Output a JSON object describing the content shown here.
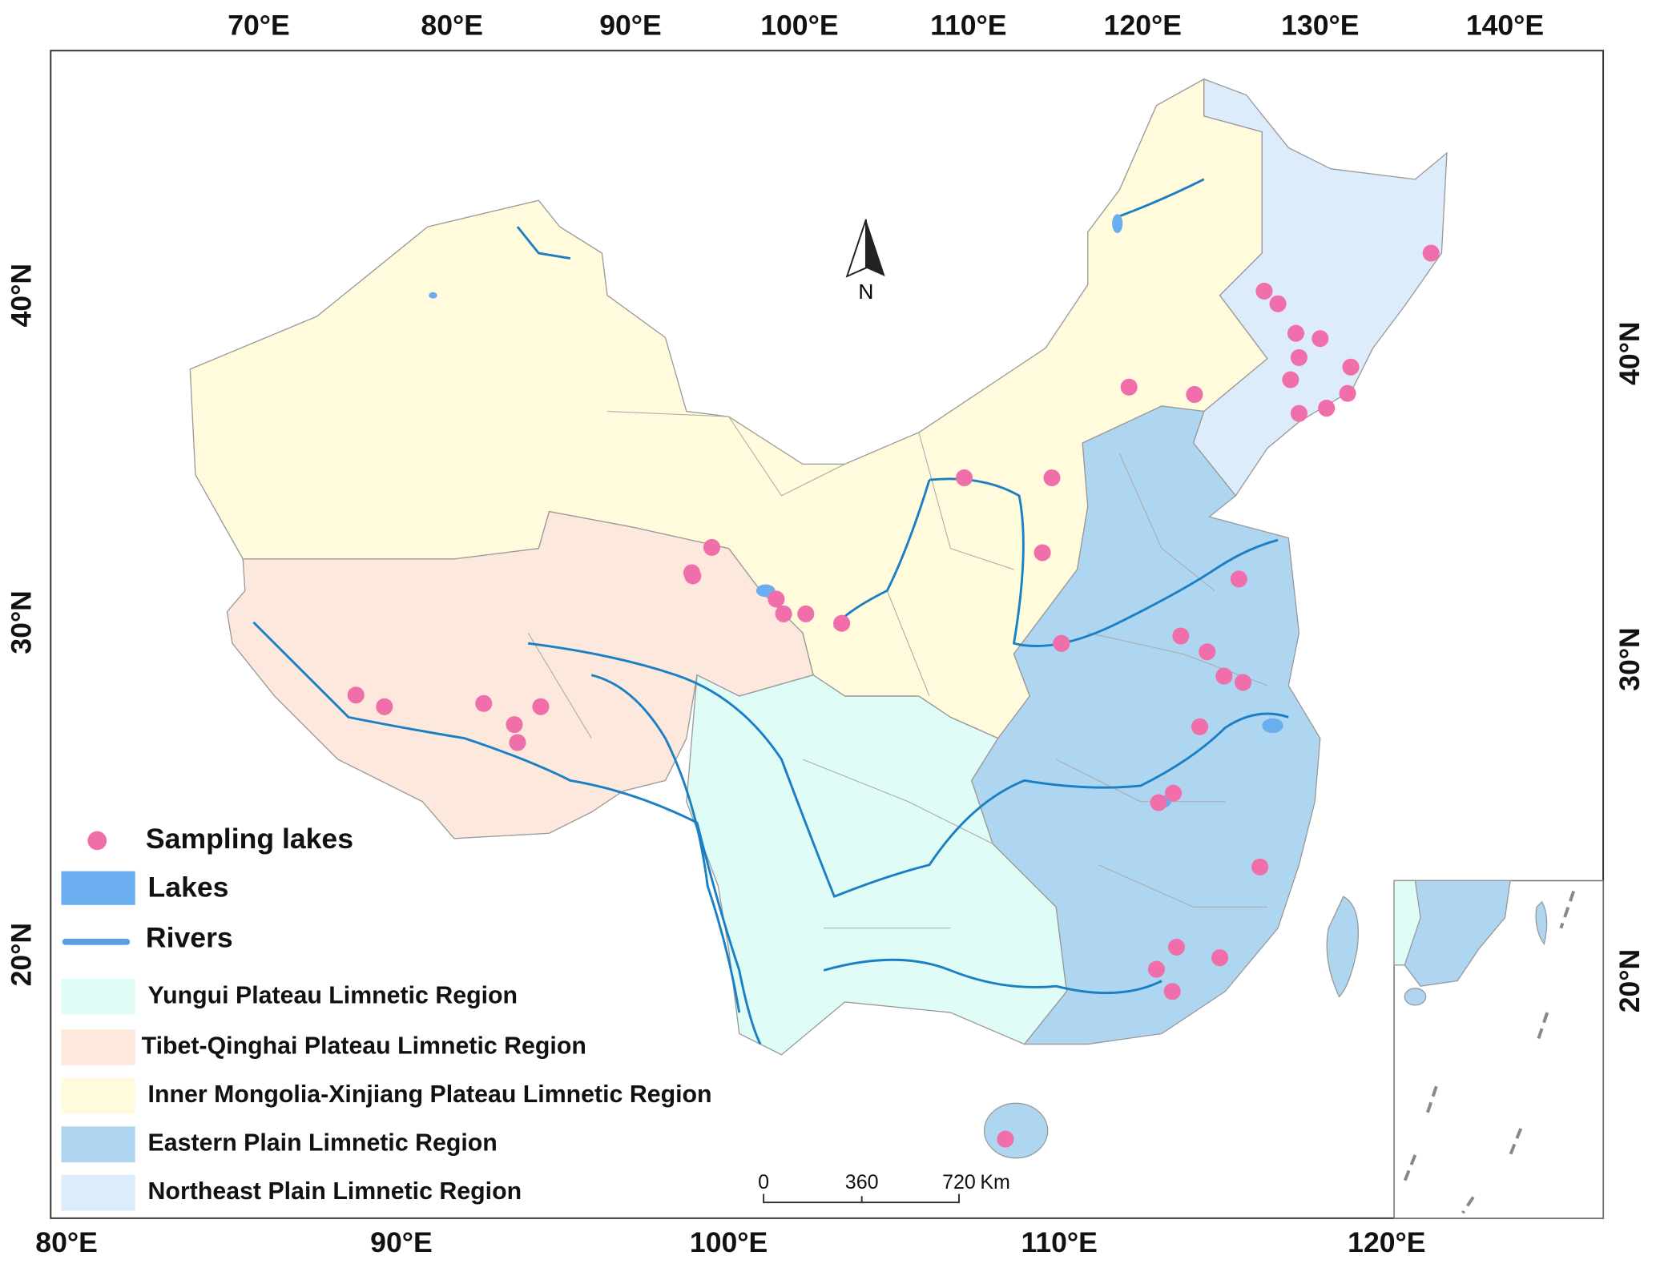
{
  "axes": {
    "top": [
      "70°E",
      "80°E",
      "90°E",
      "100°E",
      "110°E",
      "120°E",
      "130°E",
      "140°E"
    ],
    "bottom": [
      "80°E",
      "90°E",
      "100°E",
      "110°E",
      "120°E"
    ],
    "left": [
      "40°N",
      "30°N",
      "20°N"
    ],
    "right": [
      "40°N",
      "30°N",
      "20°N"
    ]
  },
  "north_arrow": "N",
  "scale_bar": {
    "labels": [
      "0",
      "360",
      "720"
    ],
    "unit": "Km"
  },
  "legend": {
    "items": [
      "Sampling lakes",
      "Lakes",
      "Rivers",
      "Yungui Plateau Limnetic Region",
      "Tibet-Qinghai Plateau Limnetic Region",
      "Inner Mongolia-Xinjiang Plateau Limnetic Region",
      "Eastern Plain Limnetic Region",
      "Northeast Plain Limnetic Region"
    ]
  }
}
